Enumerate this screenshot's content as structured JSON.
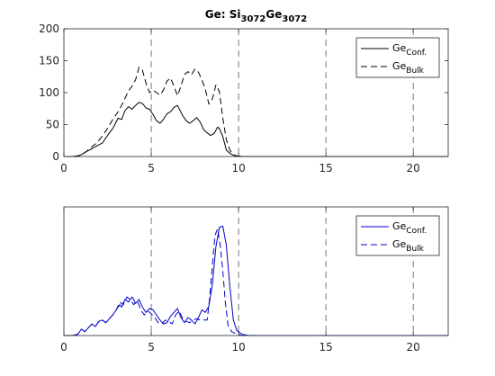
{
  "chart_data": [
    {
      "type": "line",
      "title": {
        "base": "Ge: Si",
        "sub1": "3072",
        "mid": "Ge",
        "sub2": "3072"
      },
      "xlim": [
        0,
        22
      ],
      "ylim": [
        0,
        200
      ],
      "xticks": [
        0,
        5,
        10,
        15,
        20
      ],
      "yticks": [
        0,
        50,
        100,
        150,
        200
      ],
      "show_ytick_labels": true,
      "vlines": [
        5,
        10,
        15,
        20
      ],
      "legend_position": "top-right",
      "color": "#000000",
      "series": [
        {
          "name": {
            "base": "Ge",
            "sub": "Conf."
          },
          "dash": "solid",
          "points": [
            [
              0,
              0
            ],
            [
              0.5,
              0
            ],
            [
              0.8,
              1
            ],
            [
              1,
              3
            ],
            [
              1.3,
              8
            ],
            [
              1.6,
              12
            ],
            [
              1.9,
              17
            ],
            [
              2.2,
              21
            ],
            [
              2.5,
              33
            ],
            [
              2.8,
              44
            ],
            [
              3.1,
              60
            ],
            [
              3.3,
              58
            ],
            [
              3.5,
              72
            ],
            [
              3.7,
              78
            ],
            [
              3.9,
              74
            ],
            [
              4.1,
              80
            ],
            [
              4.3,
              85
            ],
            [
              4.5,
              83
            ],
            [
              4.7,
              76
            ],
            [
              4.9,
              74
            ],
            [
              5.1,
              66
            ],
            [
              5.3,
              56
            ],
            [
              5.5,
              52
            ],
            [
              5.7,
              58
            ],
            [
              5.9,
              67
            ],
            [
              6.1,
              70
            ],
            [
              6.3,
              77
            ],
            [
              6.5,
              80
            ],
            [
              6.6,
              75
            ],
            [
              6.8,
              64
            ],
            [
              7.0,
              56
            ],
            [
              7.2,
              52
            ],
            [
              7.4,
              56
            ],
            [
              7.6,
              61
            ],
            [
              7.8,
              54
            ],
            [
              8.0,
              42
            ],
            [
              8.2,
              37
            ],
            [
              8.4,
              33
            ],
            [
              8.6,
              36
            ],
            [
              8.8,
              46
            ],
            [
              8.9,
              44
            ],
            [
              9.1,
              31
            ],
            [
              9.3,
              10
            ],
            [
              9.5,
              5
            ],
            [
              9.7,
              2
            ],
            [
              9.9,
              1
            ],
            [
              10.2,
              0
            ],
            [
              12,
              0
            ],
            [
              22,
              0
            ]
          ]
        },
        {
          "name": {
            "base": "Ge",
            "sub": "Bulk"
          },
          "dash": "dashed",
          "points": [
            [
              0,
              0
            ],
            [
              0.5,
              0
            ],
            [
              0.8,
              1
            ],
            [
              1,
              3
            ],
            [
              1.3,
              8
            ],
            [
              1.6,
              15
            ],
            [
              1.9,
              22
            ],
            [
              2.2,
              32
            ],
            [
              2.5,
              44
            ],
            [
              2.8,
              58
            ],
            [
              3.1,
              70
            ],
            [
              3.3,
              80
            ],
            [
              3.5,
              91
            ],
            [
              3.7,
              103
            ],
            [
              3.9,
              110
            ],
            [
              4.1,
              120
            ],
            [
              4.3,
              140
            ],
            [
              4.5,
              135
            ],
            [
              4.7,
              115
            ],
            [
              4.9,
              100
            ],
            [
              5.1,
              104
            ],
            [
              5.3,
              100
            ],
            [
              5.5,
              96
            ],
            [
              5.7,
              104
            ],
            [
              5.9,
              118
            ],
            [
              6.1,
              123
            ],
            [
              6.3,
              110
            ],
            [
              6.5,
              95
            ],
            [
              6.7,
              110
            ],
            [
              6.9,
              128
            ],
            [
              7.1,
              133
            ],
            [
              7.3,
              128
            ],
            [
              7.5,
              137
            ],
            [
              7.7,
              132
            ],
            [
              7.9,
              120
            ],
            [
              8.1,
              105
            ],
            [
              8.3,
              82
            ],
            [
              8.5,
              90
            ],
            [
              8.7,
              112
            ],
            [
              8.9,
              102
            ],
            [
              9.1,
              60
            ],
            [
              9.3,
              26
            ],
            [
              9.5,
              10
            ],
            [
              9.7,
              3
            ],
            [
              9.9,
              1
            ],
            [
              10.2,
              0
            ],
            [
              12,
              0
            ],
            [
              22,
              0
            ]
          ]
        }
      ]
    },
    {
      "type": "line",
      "title": "",
      "xlim": [
        0,
        22
      ],
      "ylim": [
        0,
        1
      ],
      "xticks": [
        0,
        5,
        10,
        15,
        20
      ],
      "yticks": [],
      "show_ytick_labels": false,
      "vlines": [
        5,
        10,
        15,
        20
      ],
      "legend_position": "top-right",
      "color": "#0000cc",
      "series": [
        {
          "name": {
            "base": "Ge",
            "sub": "Conf."
          },
          "dash": "solid",
          "points": [
            [
              0,
              0
            ],
            [
              0.5,
              0
            ],
            [
              0.8,
              0.01
            ],
            [
              1,
              0.05
            ],
            [
              1.2,
              0.03
            ],
            [
              1.4,
              0.06
            ],
            [
              1.6,
              0.09
            ],
            [
              1.8,
              0.07
            ],
            [
              2,
              0.11
            ],
            [
              2.2,
              0.12
            ],
            [
              2.4,
              0.1
            ],
            [
              2.6,
              0.13
            ],
            [
              2.8,
              0.16
            ],
            [
              3,
              0.2
            ],
            [
              3.2,
              0.24
            ],
            [
              3.3,
              0.22
            ],
            [
              3.5,
              0.28
            ],
            [
              3.7,
              0.26
            ],
            [
              3.9,
              0.3
            ],
            [
              4.1,
              0.25
            ],
            [
              4.3,
              0.28
            ],
            [
              4.5,
              0.22
            ],
            [
              4.7,
              0.18
            ],
            [
              4.9,
              0.21
            ],
            [
              5.1,
              0.2
            ],
            [
              5.3,
              0.16
            ],
            [
              5.5,
              0.12
            ],
            [
              5.7,
              0.09
            ],
            [
              5.9,
              0.1
            ],
            [
              6.1,
              0.15
            ],
            [
              6.3,
              0.18
            ],
            [
              6.5,
              0.21
            ],
            [
              6.7,
              0.14
            ],
            [
              6.9,
              0.1
            ],
            [
              7.1,
              0.14
            ],
            [
              7.3,
              0.12
            ],
            [
              7.5,
              0.09
            ],
            [
              7.7,
              0.14
            ],
            [
              7.9,
              0.2
            ],
            [
              8.1,
              0.18
            ],
            [
              8.3,
              0.23
            ],
            [
              8.5,
              0.4
            ],
            [
              8.7,
              0.69
            ],
            [
              8.9,
              0.84
            ],
            [
              9.1,
              0.85
            ],
            [
              9.3,
              0.7
            ],
            [
              9.5,
              0.38
            ],
            [
              9.7,
              0.12
            ],
            [
              9.9,
              0.04
            ],
            [
              10.2,
              0.01
            ],
            [
              10.6,
              0
            ],
            [
              22,
              0
            ]
          ]
        },
        {
          "name": {
            "base": "Ge",
            "sub": "Bulk"
          },
          "dash": "dashed",
          "points": [
            [
              0,
              0
            ],
            [
              0.5,
              0
            ],
            [
              0.8,
              0.01
            ],
            [
              1,
              0.05
            ],
            [
              1.2,
              0.03
            ],
            [
              1.4,
              0.06
            ],
            [
              1.6,
              0.09
            ],
            [
              1.8,
              0.07
            ],
            [
              2,
              0.11
            ],
            [
              2.2,
              0.12
            ],
            [
              2.4,
              0.1
            ],
            [
              2.6,
              0.13
            ],
            [
              2.8,
              0.16
            ],
            [
              3,
              0.2
            ],
            [
              3.2,
              0.26
            ],
            [
              3.4,
              0.24
            ],
            [
              3.6,
              0.3
            ],
            [
              3.8,
              0.28
            ],
            [
              4.0,
              0.24
            ],
            [
              4.2,
              0.27
            ],
            [
              4.4,
              0.2
            ],
            [
              4.6,
              0.16
            ],
            [
              4.8,
              0.19
            ],
            [
              5.0,
              0.17
            ],
            [
              5.2,
              0.14
            ],
            [
              5.4,
              0.1
            ],
            [
              5.6,
              0.09
            ],
            [
              5.8,
              0.12
            ],
            [
              6.0,
              0.11
            ],
            [
              6.2,
              0.09
            ],
            [
              6.4,
              0.16
            ],
            [
              6.6,
              0.19
            ],
            [
              6.8,
              0.13
            ],
            [
              7.0,
              0.11
            ],
            [
              7.2,
              0.1
            ],
            [
              7.4,
              0.12
            ],
            [
              7.6,
              0.13
            ],
            [
              7.8,
              0.12
            ],
            [
              8.0,
              0.12
            ],
            [
              8.2,
              0.12
            ],
            [
              8.35,
              0.3
            ],
            [
              8.5,
              0.55
            ],
            [
              8.65,
              0.78
            ],
            [
              8.8,
              0.83
            ],
            [
              8.95,
              0.7
            ],
            [
              9.1,
              0.5
            ],
            [
              9.25,
              0.25
            ],
            [
              9.4,
              0.08
            ],
            [
              9.6,
              0.03
            ],
            [
              9.9,
              0.01
            ],
            [
              10.2,
              0
            ],
            [
              22,
              0
            ]
          ]
        }
      ]
    }
  ]
}
